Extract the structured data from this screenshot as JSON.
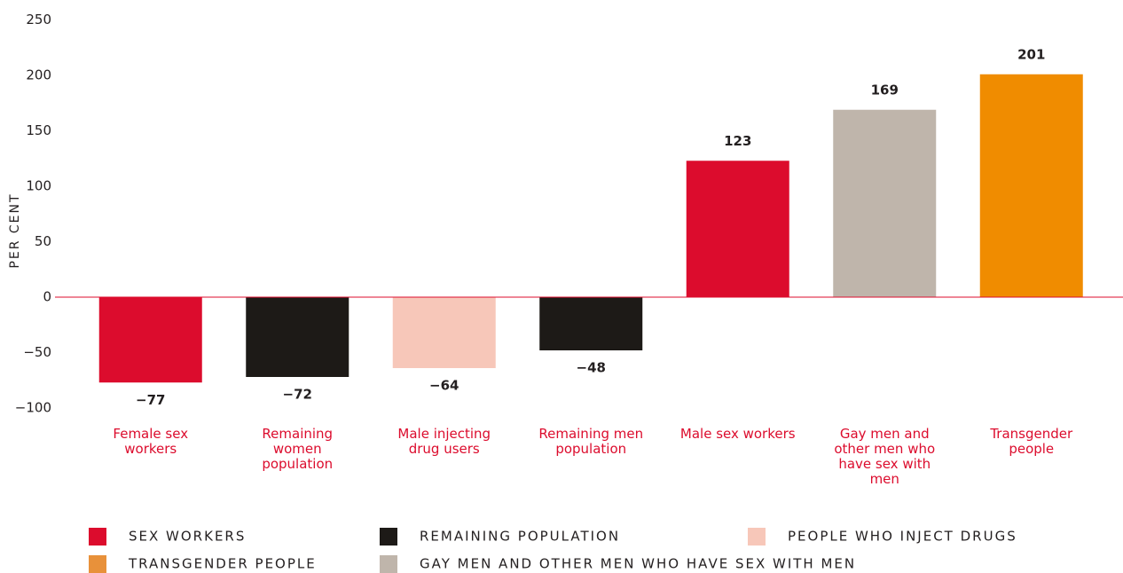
{
  "chart_data": {
    "type": "bar",
    "y_label": "PER CENT",
    "categories": [
      "Female sex workers",
      "Remaining women population",
      "Male injecting drug users",
      "Remaining men population",
      "Male sex workers",
      "Gay men and other men who have sex with men",
      "Transgender people"
    ],
    "values": [
      -77,
      -72,
      -64,
      -48,
      123,
      169,
      201
    ],
    "value_labels": [
      "−77",
      "−72",
      "−64",
      "−48",
      "123",
      "169",
      "201"
    ],
    "colors": [
      "#dc0c2d",
      "#1d1a17",
      "#f7c7b9",
      "#1d1a17",
      "#dc0c2d",
      "#bfb5ab",
      "#f08c00"
    ],
    "ylim": [
      -100,
      250
    ],
    "yticks": [
      {
        "value": -100,
        "label": "−100"
      },
      {
        "value": -50,
        "label": "−50"
      },
      0,
      50,
      100,
      150,
      200,
      250
    ],
    "grid": false,
    "legend": [
      {
        "name": "SEX WORKERS",
        "color": "#dc0c2d"
      },
      {
        "name": "REMAINING POPULATION",
        "color": "#1d1a17"
      },
      {
        "name": "PEOPLE WHO INJECT DRUGS",
        "color": "#f7c7b9"
      },
      {
        "name": "TRANSGENDER PEOPLE",
        "color": "#e8913a"
      },
      {
        "name": "GAY MEN AND OTHER MEN WHO HAVE SEX WITH MEN",
        "color": "#bfb5ab"
      }
    ]
  }
}
